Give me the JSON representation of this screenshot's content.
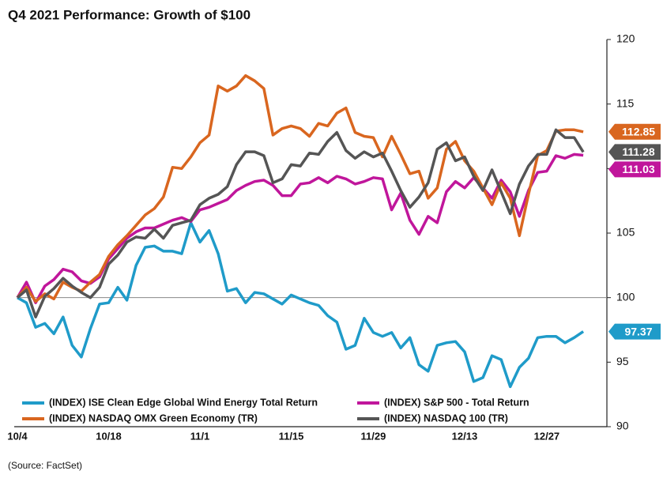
{
  "chart_data": {
    "type": "line",
    "title": "Q4 2021 Performance: Growth of $100",
    "source": "(Source: FactSet)",
    "categories": [
      "10/4",
      null,
      null,
      null,
      null,
      null,
      null,
      null,
      null,
      null,
      "10/18",
      null,
      null,
      null,
      null,
      null,
      null,
      null,
      null,
      null,
      "11/1",
      null,
      null,
      null,
      null,
      null,
      null,
      null,
      null,
      null,
      "11/15",
      null,
      null,
      null,
      null,
      null,
      null,
      null,
      null,
      "11/29",
      null,
      null,
      null,
      null,
      null,
      null,
      null,
      null,
      null,
      "12/13",
      null,
      null,
      null,
      null,
      null,
      null,
      null,
      null,
      "12/27",
      null,
      null,
      null,
      null
    ],
    "ylim": [
      90,
      120
    ],
    "yticks": [
      90,
      95,
      100,
      105,
      110,
      115,
      120
    ],
    "hline": 100,
    "series": [
      {
        "name": "(INDEX) ISE Clean Edge Global Wind Energy Total Return",
        "color": "#1f9bc9",
        "values": [
          100,
          99.6,
          97.7,
          98.0,
          97.2,
          98.5,
          96.3,
          95.4,
          97.6,
          99.5,
          99.6,
          100.8,
          99.8,
          102.5,
          103.9,
          104.0,
          103.6,
          103.6,
          103.4,
          105.8,
          104.3,
          105.2,
          103.4,
          100.5,
          100.7,
          99.6,
          100.4,
          100.3,
          99.9,
          99.5,
          100.2,
          99.9,
          99.6,
          99.4,
          98.6,
          98.1,
          96.0,
          96.3,
          98.4,
          97.3,
          97.0,
          97.3,
          96.1,
          96.9,
          94.8,
          94.3,
          96.3,
          96.5,
          96.6,
          95.8,
          93.5,
          93.8,
          95.5,
          95.2,
          93.1,
          94.6,
          95.3,
          96.9,
          97.0,
          97.0,
          96.5,
          96.9,
          97.37
        ]
      },
      {
        "name": "(INDEX) S&P 500 - Total Return",
        "color": "#c0169b",
        "values": [
          100,
          101.2,
          99.6,
          100.9,
          101.4,
          102.2,
          102.0,
          101.3,
          101.1,
          101.6,
          103.0,
          103.8,
          104.6,
          105.1,
          105.4,
          105.4,
          105.7,
          106.0,
          106.2,
          105.9,
          106.8,
          107.0,
          107.3,
          107.6,
          108.3,
          108.7,
          109.0,
          109.1,
          108.7,
          107.9,
          107.9,
          108.8,
          108.9,
          109.3,
          108.9,
          109.4,
          109.2,
          108.8,
          109.0,
          109.3,
          109.2,
          106.8,
          108.1,
          106.0,
          104.9,
          106.3,
          105.8,
          108.2,
          109.0,
          108.5,
          109.3,
          108.5,
          107.7,
          109.1,
          108.2,
          106.3,
          108.3,
          109.7,
          109.8,
          111.0,
          110.8,
          111.1,
          111.03
        ]
      },
      {
        "name": "(INDEX) NASDAQ OMX Green Economy (TR)",
        "color": "#d9661f",
        "values": [
          100,
          100.8,
          99.7,
          100.3,
          99.9,
          101.2,
          100.8,
          100.5,
          101.2,
          101.8,
          103.2,
          104.1,
          104.8,
          105.6,
          106.4,
          106.9,
          107.8,
          110.1,
          110.0,
          110.9,
          112.0,
          112.6,
          116.4,
          116.0,
          116.4,
          117.2,
          116.8,
          116.2,
          112.6,
          113.1,
          113.3,
          113.1,
          112.5,
          113.5,
          113.3,
          114.3,
          114.7,
          112.8,
          112.5,
          112.4,
          110.9,
          112.5,
          111.1,
          109.6,
          109.8,
          107.7,
          108.5,
          111.5,
          112.1,
          110.6,
          109.8,
          108.5,
          107.2,
          108.9,
          107.7,
          104.8,
          108.0,
          111.0,
          111.4,
          112.9,
          113.0,
          113.0,
          112.85
        ]
      },
      {
        "name": "(INDEX) NASDAQ 100 (TR)",
        "color": "#555555",
        "values": [
          100,
          100.6,
          98.5,
          100.1,
          100.7,
          101.5,
          100.9,
          100.4,
          100.0,
          100.8,
          102.6,
          103.3,
          104.3,
          104.7,
          104.6,
          105.3,
          104.6,
          105.6,
          105.8,
          106.0,
          107.2,
          107.7,
          108.0,
          108.6,
          110.3,
          111.3,
          111.3,
          111.0,
          108.9,
          109.2,
          110.3,
          110.2,
          111.2,
          111.1,
          112.1,
          112.8,
          111.4,
          110.8,
          111.3,
          110.9,
          111.2,
          109.8,
          108.3,
          107.0,
          107.8,
          108.9,
          111.5,
          112.0,
          110.6,
          110.9,
          109.4,
          108.3,
          109.9,
          108.2,
          106.5,
          108.8,
          110.2,
          111.1,
          111.1,
          113.0,
          112.4,
          112.4,
          111.28
        ]
      }
    ]
  }
}
